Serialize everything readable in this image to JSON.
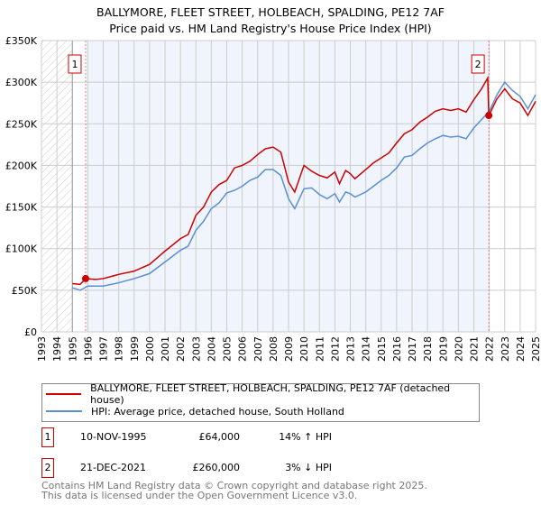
{
  "chart_data": {
    "type": "line",
    "title": "BALLYMORE, FLEET STREET, HOLBEACH, SPALDING, PE12 7AF",
    "subtitle": "Price paid vs. HM Land Registry's House Price Index (HPI)",
    "xlim": [
      1993,
      2025
    ],
    "ylim": [
      0,
      350000
    ],
    "x_ticks": [
      "1993",
      "1994",
      "1995",
      "1996",
      "1997",
      "1998",
      "1999",
      "2000",
      "2001",
      "2002",
      "2003",
      "2004",
      "2005",
      "2006",
      "2007",
      "2008",
      "2009",
      "2010",
      "2011",
      "2012",
      "2013",
      "2014",
      "2015",
      "2016",
      "2017",
      "2018",
      "2019",
      "2020",
      "2021",
      "2022",
      "2023",
      "2024",
      "2025"
    ],
    "y_ticks": [
      {
        "v": 0,
        "label": "£0"
      },
      {
        "v": 50000,
        "label": "£50K"
      },
      {
        "v": 100000,
        "label": "£100K"
      },
      {
        "v": 150000,
        "label": "£150K"
      },
      {
        "v": 200000,
        "label": "£200K"
      },
      {
        "v": 250000,
        "label": "£250K"
      },
      {
        "v": 300000,
        "label": "£300K"
      },
      {
        "v": 350000,
        "label": "£350K"
      }
    ],
    "grid": true,
    "series": [
      {
        "name": "BALLYMORE, FLEET STREET, HOLBEACH, SPALDING, PE12 7AF (detached house)",
        "color": "#cc0000",
        "x": [
          1995,
          1995.5,
          1995.86,
          1996.5,
          1997,
          1998,
          1999,
          2000,
          2001,
          2002,
          2002.5,
          2003,
          2003.5,
          2004,
          2004.5,
          2005,
          2005.5,
          2006,
          2006.5,
          2007,
          2007.5,
          2008,
          2008.5,
          2009,
          2009.4,
          2010,
          2010.5,
          2011,
          2011.5,
          2012,
          2012.3,
          2012.7,
          2013,
          2013.3,
          2014,
          2014.5,
          2015,
          2015.5,
          2016,
          2016.5,
          2017,
          2017.5,
          2018,
          2018.5,
          2019,
          2019.5,
          2020,
          2020.5,
          2021,
          2021.5,
          2021.9,
          2021.97,
          2022.5,
          2023,
          2023.5,
          2024,
          2024.5,
          2025
        ],
        "y": [
          58000,
          57000,
          64000,
          63000,
          64000,
          69000,
          73000,
          81000,
          97000,
          112000,
          117000,
          140000,
          150000,
          168000,
          177000,
          182000,
          197000,
          200000,
          205000,
          213000,
          220000,
          222000,
          216000,
          180000,
          168000,
          200000,
          193000,
          188000,
          185000,
          192000,
          178000,
          194000,
          190000,
          184000,
          195000,
          203000,
          209000,
          215000,
          227000,
          238000,
          243000,
          252000,
          258000,
          265000,
          268000,
          266000,
          268000,
          264000,
          279000,
          292000,
          305000,
          260000,
          280000,
          292000,
          280000,
          275000,
          260000,
          277000
        ]
      },
      {
        "name": "HPI: Average price, detached house, South Holland",
        "color": "#5b8fd4",
        "x": [
          1995,
          1995.5,
          1996,
          1997,
          1998,
          1999,
          2000,
          2001,
          2002,
          2002.5,
          2003,
          2003.5,
          2004,
          2004.5,
          2005,
          2005.5,
          2006,
          2006.5,
          2007,
          2007.5,
          2008,
          2008.5,
          2009,
          2009.4,
          2010,
          2010.5,
          2011,
          2011.5,
          2012,
          2012.3,
          2012.7,
          2013,
          2013.3,
          2014,
          2014.5,
          2015,
          2015.5,
          2016,
          2016.5,
          2017,
          2017.5,
          2018,
          2018.5,
          2019,
          2019.5,
          2020,
          2020.5,
          2021,
          2021.5,
          2022,
          2022.5,
          2023,
          2023.5,
          2024,
          2024.5,
          2025
        ],
        "y": [
          53000,
          50000,
          55000,
          55000,
          59000,
          64000,
          70000,
          84000,
          98000,
          103000,
          122000,
          133000,
          148000,
          155000,
          167000,
          170000,
          175000,
          182000,
          186000,
          195000,
          195000,
          188000,
          160000,
          148000,
          172000,
          173000,
          165000,
          160000,
          166000,
          156000,
          168000,
          166000,
          162000,
          168000,
          175000,
          182000,
          188000,
          197000,
          210000,
          212000,
          220000,
          227000,
          232000,
          236000,
          234000,
          235000,
          232000,
          245000,
          255000,
          265000,
          285000,
          300000,
          290000,
          283000,
          268000,
          285000
        ]
      }
    ],
    "annotations": [
      {
        "label": "1",
        "x": 1995.86,
        "y": 64000
      },
      {
        "label": "2",
        "x": 2021.97,
        "y": 260000
      }
    ],
    "legend_position": "below"
  },
  "sales": [
    {
      "num": "1",
      "date": "10-NOV-1995",
      "price": "£64,000",
      "hpi": "14% ↑ HPI"
    },
    {
      "num": "2",
      "date": "21-DEC-2021",
      "price": "£260,000",
      "hpi": "3% ↓ HPI"
    }
  ],
  "footer": {
    "line1": "Contains HM Land Registry data © Crown copyright and database right 2025.",
    "line2": "This data is licensed under the Open Government Licence v3.0."
  }
}
